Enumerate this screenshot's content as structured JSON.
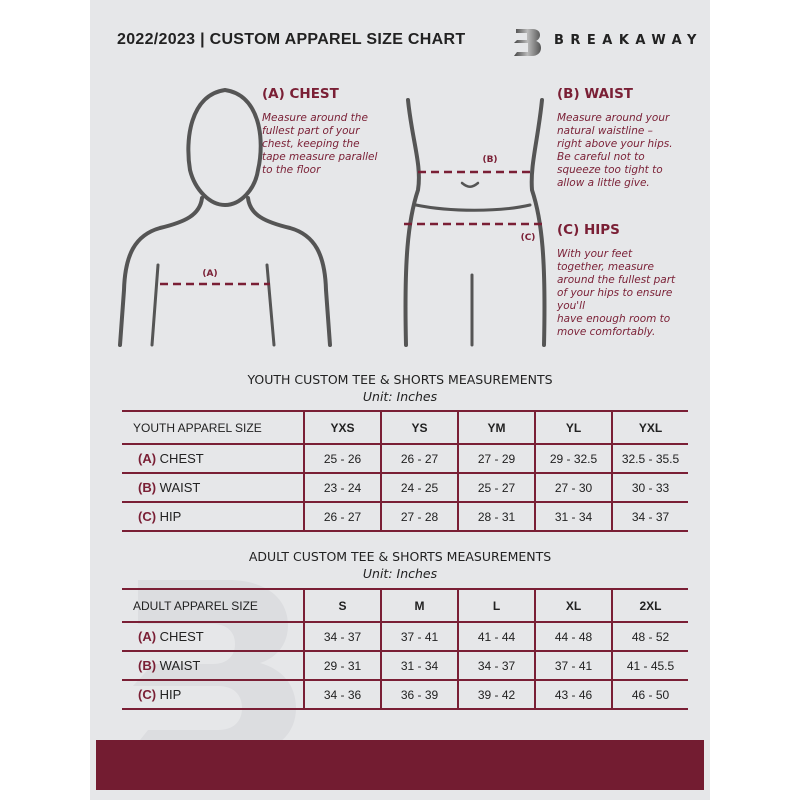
{
  "header": {
    "title": "2022/2023  |  CUSTOM APPAREL SIZE CHART",
    "brand": "BREAKAWAY"
  },
  "colors": {
    "accent": "#7a1f35",
    "background": "#e6e7e9",
    "footer_bar": "#731c31"
  },
  "measures": {
    "chest": {
      "heading": "(A) CHEST",
      "marker": "(A)",
      "lines": [
        "Measure around the",
        "fullest part of your",
        "chest, keeping the",
        "tape measure parallel",
        "to the floor"
      ]
    },
    "waist": {
      "heading": "(B) WAIST",
      "marker": "(B)",
      "lines": [
        "Measure around your",
        "natural waistline –",
        "right above your hips.",
        "Be careful not to",
        "squeeze too tight to",
        "allow a little give."
      ]
    },
    "hips": {
      "heading": "(C) HIPS",
      "marker": "(C)",
      "lines": [
        "With your feet",
        "together, measure",
        "around the fullest part",
        "of your hips to ensure",
        "you'll",
        "have enough room to",
        "move comfortably."
      ]
    }
  },
  "youth": {
    "title": "YOUTH CUSTOM TEE & SHORTS MEASUREMENTS",
    "unit": "Unit: Inches",
    "header_label": "YOUTH APPAREL SIZE",
    "sizes": [
      "YXS",
      "YS",
      "YM",
      "YL",
      "YXL"
    ],
    "rows": [
      {
        "code": "(A)",
        "label": "CHEST",
        "values": [
          "25 - 26",
          "26 - 27",
          "27 - 29",
          "29 - 32.5",
          "32.5 - 35.5"
        ]
      },
      {
        "code": "(B)",
        "label": "WAIST",
        "values": [
          "23 - 24",
          "24 - 25",
          "25 - 27",
          "27 - 30",
          "30 - 33"
        ]
      },
      {
        "code": "(C)",
        "label": "HIP",
        "values": [
          "26 - 27",
          "27 - 28",
          "28 - 31",
          "31 - 34",
          "34 - 37"
        ]
      }
    ]
  },
  "adult": {
    "title": "ADULT CUSTOM TEE & SHORTS MEASUREMENTS",
    "unit": "Unit: Inches",
    "header_label": "ADULT APPAREL SIZE",
    "sizes": [
      "S",
      "M",
      "L",
      "XL",
      "2XL"
    ],
    "rows": [
      {
        "code": "(A)",
        "label": "CHEST",
        "values": [
          "34 - 37",
          "37 - 41",
          "41 - 44",
          "44 - 48",
          "48 - 52"
        ]
      },
      {
        "code": "(B)",
        "label": "WAIST",
        "values": [
          "29 - 31",
          "31 - 34",
          "34 - 37",
          "37 - 41",
          "41 - 45.5"
        ]
      },
      {
        "code": "(C)",
        "label": "HIP",
        "values": [
          "34 - 36",
          "36 - 39",
          "39 - 42",
          "43 - 46",
          "46 - 50"
        ]
      }
    ]
  },
  "watermark": "B"
}
